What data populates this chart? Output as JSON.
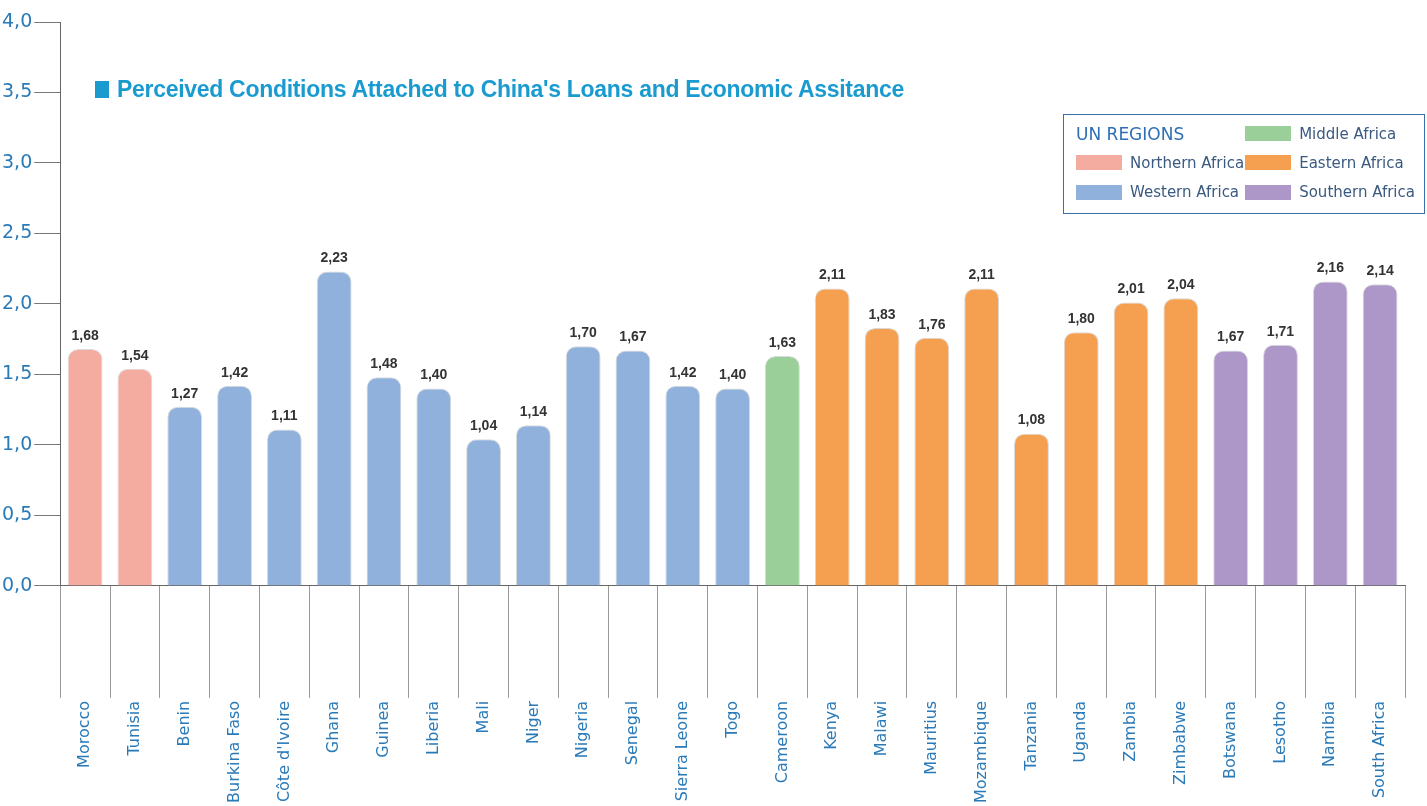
{
  "chart_data": {
    "type": "bar",
    "title": "Perceived Conditions Attached to China's  Loans and Economic Assitance",
    "legend_title": "UN REGIONS",
    "legend": "top right",
    "grid": false,
    "categories": [
      "Morocco",
      "Tunisia",
      "Benin",
      "Burkina Faso",
      "Côte d'Ivoire",
      "Ghana",
      "Guinea",
      "Liberia",
      "Mali",
      "Niger",
      "Nigeria",
      "Senegal",
      "Sierra Leone",
      "Togo",
      "Cameroon",
      "Kenya",
      "Malawi",
      "Mauritius",
      "Mozambique",
      "Tanzania",
      "Uganda",
      "Zambia",
      "Zimbabwe",
      "Botswana",
      "Lesotho",
      "Namibia",
      "South Africa"
    ],
    "ylim": [
      0,
      4
    ],
    "yticks": [
      {
        "value": 0,
        "label": "0,0"
      },
      {
        "value": 0.5,
        "label": "0,5"
      },
      {
        "value": 1,
        "label": "1,0"
      },
      {
        "value": 1.5,
        "label": "1,5"
      },
      {
        "value": 2,
        "label": "2,0"
      },
      {
        "value": 2.5,
        "label": "2,5"
      },
      {
        "value": 3,
        "label": "3,0"
      },
      {
        "value": 3.5,
        "label": "3,5"
      },
      {
        "value": 4,
        "label": "4,0"
      }
    ],
    "series": [
      {
        "name": "Northern Africa",
        "color": "#f5aca0",
        "values": [
          1.68,
          1.54,
          null,
          null,
          null,
          null,
          null,
          null,
          null,
          null,
          null,
          null,
          null,
          null,
          null,
          null,
          null,
          null,
          null,
          null,
          null,
          null,
          null,
          null,
          null,
          null,
          null
        ],
        "value_labels": [
          "1,68",
          "1,54",
          null,
          null,
          null,
          null,
          null,
          null,
          null,
          null,
          null,
          null,
          null,
          null,
          null,
          null,
          null,
          null,
          null,
          null,
          null,
          null,
          null,
          null,
          null,
          null,
          null
        ]
      },
      {
        "name": "Western Africa",
        "color": "#8fb1dc",
        "values": [
          null,
          null,
          1.27,
          1.42,
          1.11,
          2.23,
          1.48,
          1.4,
          1.04,
          1.14,
          1.7,
          1.67,
          1.42,
          1.4,
          null,
          null,
          null,
          null,
          null,
          null,
          null,
          null,
          null,
          null,
          null,
          null,
          null
        ],
        "value_labels": [
          null,
          null,
          "1,27",
          "1,42",
          "1,11",
          "2,23",
          "1,48",
          "1,40",
          "1,04",
          "1,14",
          "1,70",
          "1,67",
          "1,42",
          "1,40",
          null,
          null,
          null,
          null,
          null,
          null,
          null,
          null,
          null,
          null,
          null,
          null,
          null
        ]
      },
      {
        "name": "Middle Africa",
        "color": "#9acf9a",
        "values": [
          null,
          null,
          null,
          null,
          null,
          null,
          null,
          null,
          null,
          null,
          null,
          null,
          null,
          null,
          1.63,
          null,
          null,
          null,
          null,
          null,
          null,
          null,
          null,
          null,
          null,
          null,
          null
        ],
        "value_labels": [
          null,
          null,
          null,
          null,
          null,
          null,
          null,
          null,
          null,
          null,
          null,
          null,
          null,
          null,
          "1,63",
          null,
          null,
          null,
          null,
          null,
          null,
          null,
          null,
          null,
          null,
          null,
          null
        ]
      },
      {
        "name": "Eastern Africa",
        "color": "#f5a050",
        "values": [
          null,
          null,
          null,
          null,
          null,
          null,
          null,
          null,
          null,
          null,
          null,
          null,
          null,
          null,
          null,
          2.11,
          1.83,
          1.76,
          2.11,
          1.08,
          1.8,
          2.01,
          2.04,
          null,
          null,
          null,
          null
        ],
        "value_labels": [
          null,
          null,
          null,
          null,
          null,
          null,
          null,
          null,
          null,
          null,
          null,
          null,
          null,
          null,
          null,
          "2,11",
          "1,83",
          "1,76",
          "2,11",
          "1,08",
          "1,80",
          "2,01",
          "2,04",
          null,
          null,
          null,
          null
        ]
      },
      {
        "name": "Southern Africa",
        "color": "#ad97c8",
        "values": [
          null,
          null,
          null,
          null,
          null,
          null,
          null,
          null,
          null,
          null,
          null,
          null,
          null,
          null,
          null,
          null,
          null,
          null,
          null,
          null,
          null,
          null,
          null,
          1.67,
          1.71,
          2.16,
          2.14
        ],
        "value_labels": [
          null,
          null,
          null,
          null,
          null,
          null,
          null,
          null,
          null,
          null,
          null,
          null,
          null,
          null,
          null,
          null,
          null,
          null,
          null,
          null,
          null,
          null,
          null,
          "1,67",
          "1,71",
          "2,16",
          "2,14"
        ]
      }
    ]
  }
}
